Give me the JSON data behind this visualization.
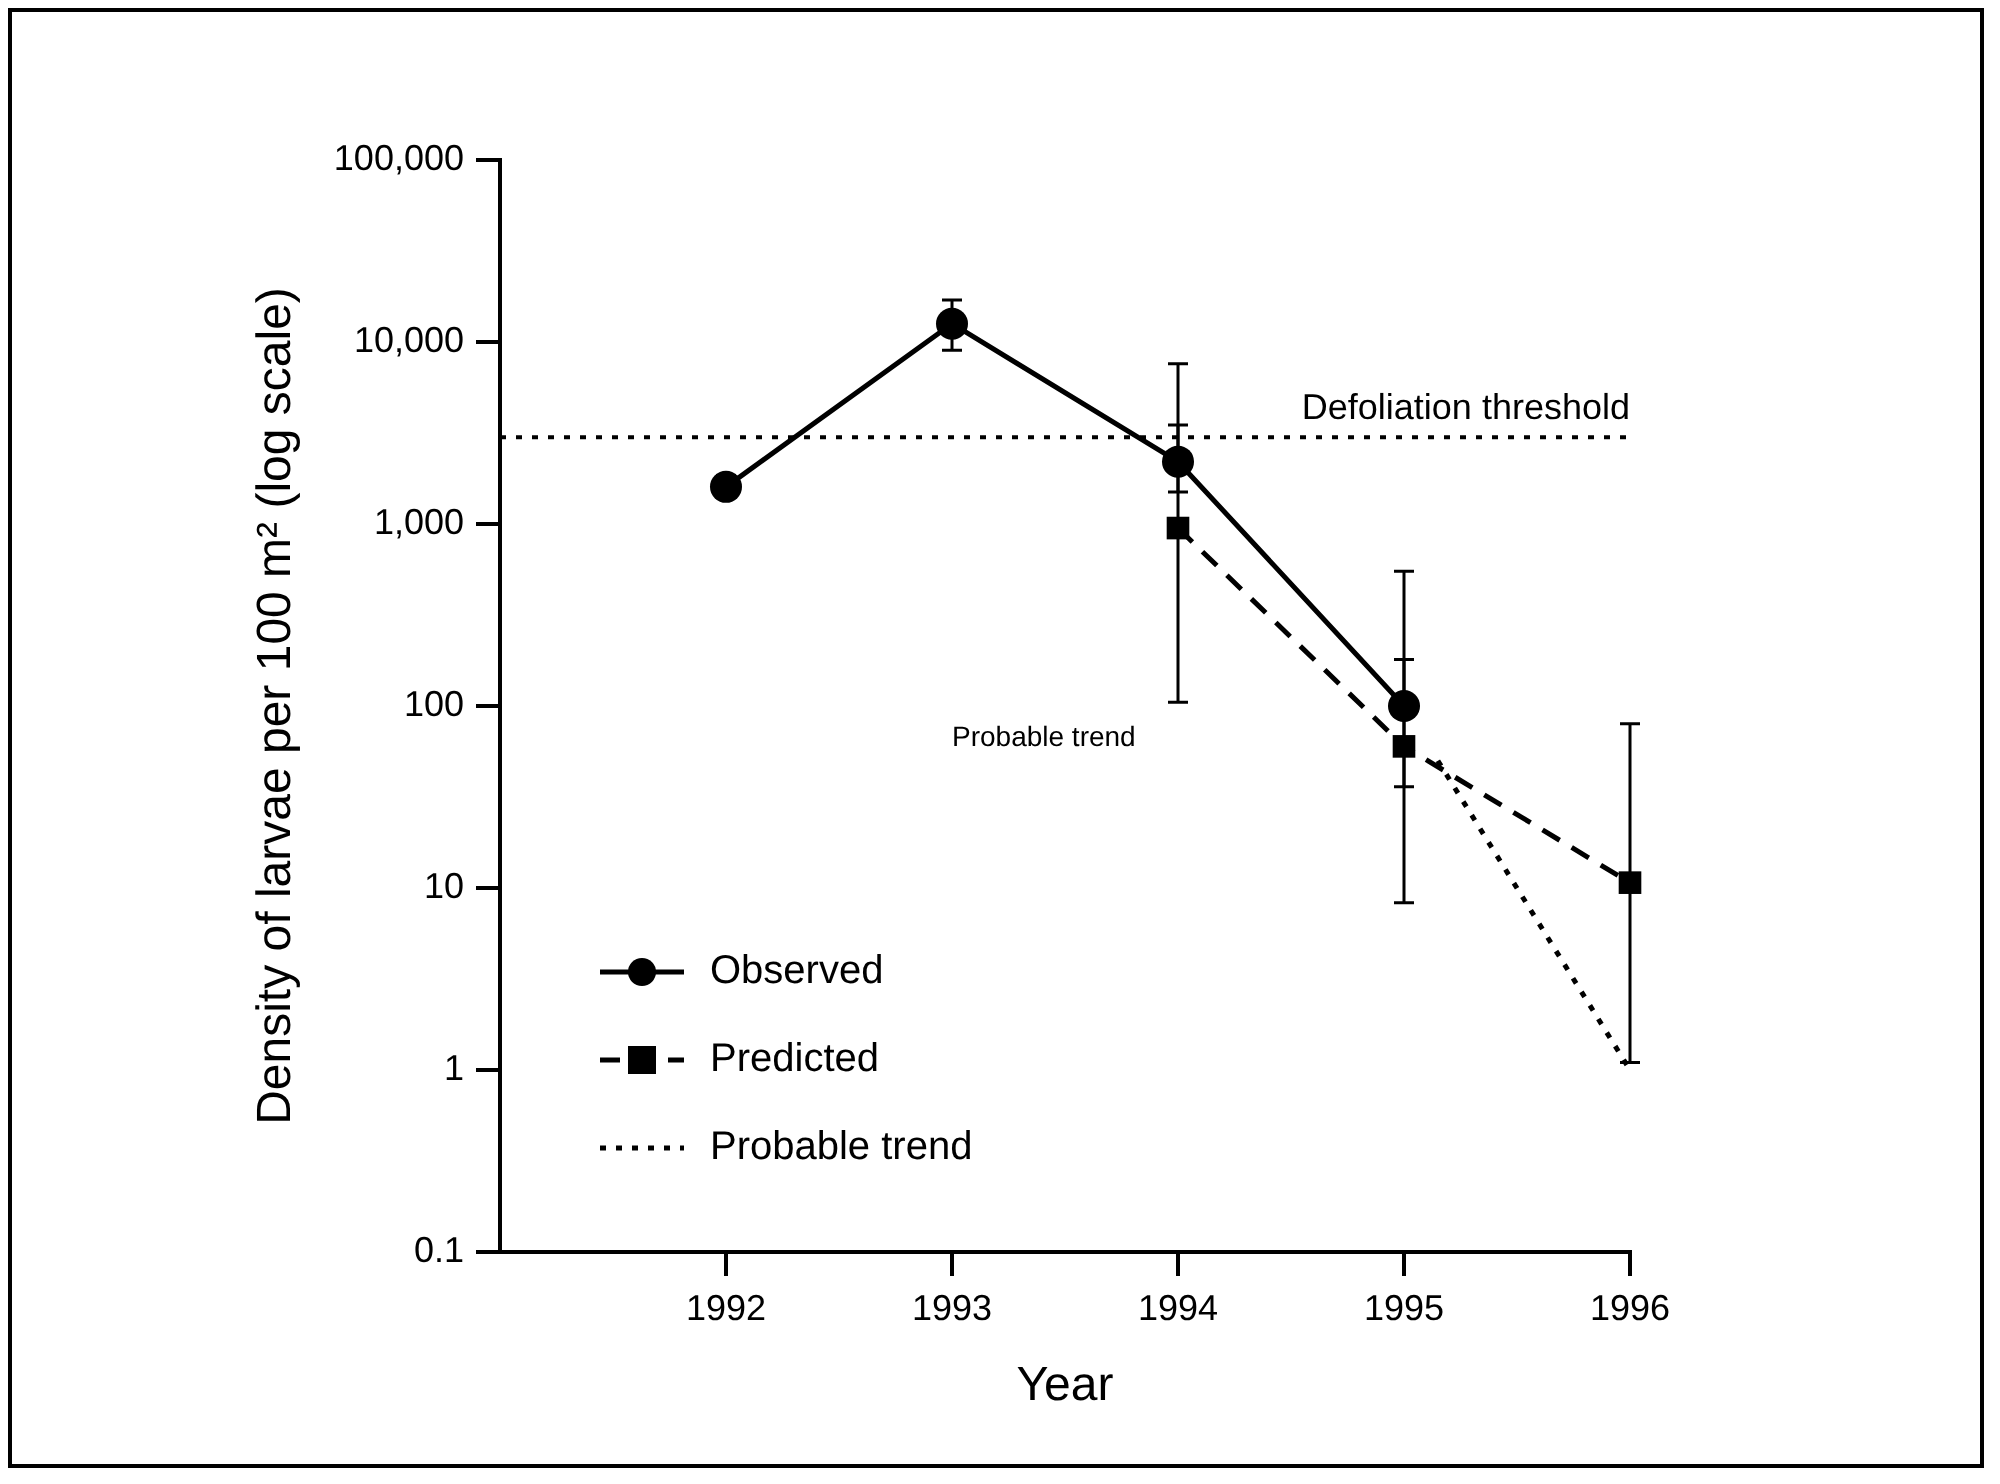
{
  "chart_data": {
    "type": "line",
    "xlabel": "Year",
    "ylabel": "Density of larvae per 100 m² (log scale)",
    "log": "y",
    "xlim": [
      1991,
      1996
    ],
    "xticks": [
      1992,
      1993,
      1994,
      1995,
      1996
    ],
    "ylim": [
      0.1,
      100000
    ],
    "yticks": [
      0.1,
      1,
      10,
      100,
      {
        "value": 1000,
        "label": "1,000"
      },
      {
        "value": 10000,
        "label": "10,000"
      },
      {
        "value": 100000,
        "label": "100,000"
      }
    ],
    "grid": false,
    "legend": "bottom left",
    "series": [
      {
        "name": "Observed",
        "color": "#000000",
        "marker": "circle",
        "line_style": "solid",
        "x": [
          1992,
          1993,
          1994,
          1995
        ],
        "values": [
          1600,
          12600,
          2200,
          100
        ],
        "errors": [
          [
            1400,
            1850
          ],
          [
            9000,
            17000
          ],
          [
            1500,
            3500
          ],
          [
            36,
            180
          ]
        ]
      },
      {
        "name": "Predicted",
        "color": "#000000",
        "marker": "square",
        "line_style": "dashed",
        "x": [
          1994,
          1995,
          1996
        ],
        "values": [
          950,
          60,
          10.7
        ],
        "errors": [
          [
            105,
            7600
          ],
          [
            8.3,
            550
          ],
          [
            1.1,
            80
          ]
        ]
      },
      {
        "name": "Probable trend",
        "color": "#000000",
        "marker": "none",
        "line_style": "dotted",
        "x": [
          1995.15,
          1996
        ],
        "values": [
          50,
          1
        ]
      }
    ],
    "ref_lines": [
      {
        "axis": "y",
        "value": 3000,
        "label": "Defoliation threshold",
        "line_style": "dotted",
        "color": "#000000"
      }
    ],
    "annotations": [
      "Probable trend"
    ]
  }
}
